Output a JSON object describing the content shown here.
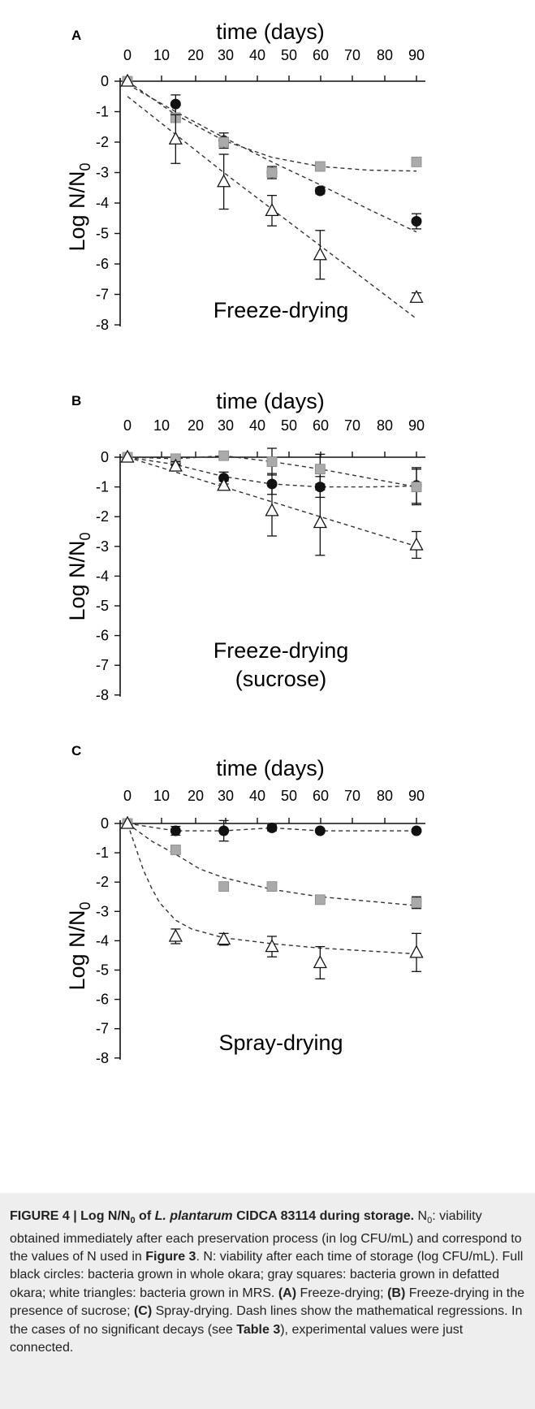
{
  "panels": [
    {
      "letter": "A",
      "label_lines": [
        "Freeze-drying"
      ],
      "xlabel": "time (days)",
      "xticks": [
        0,
        10,
        20,
        30,
        40,
        50,
        60,
        70,
        80,
        90
      ],
      "yticks": [
        0,
        -1,
        -2,
        -3,
        -4,
        -5,
        -6,
        -7,
        -8
      ],
      "ylabel": "Log N/N",
      "ylabel_sub": "0"
    },
    {
      "letter": "B",
      "label_lines": [
        "Freeze-drying",
        "(sucrose)"
      ],
      "xlabel": "time (days)",
      "xticks": [
        0,
        10,
        20,
        30,
        40,
        50,
        60,
        70,
        80,
        90
      ],
      "yticks": [
        0,
        -1,
        -2,
        -3,
        -4,
        -5,
        -6,
        -7,
        -8
      ],
      "ylabel": "Log N/N",
      "ylabel_sub": "0"
    },
    {
      "letter": "C",
      "label_lines": [
        "Spray-drying"
      ],
      "xlabel": "time (days)",
      "xticks": [
        0,
        10,
        20,
        30,
        40,
        50,
        60,
        70,
        80,
        90
      ],
      "yticks": [
        0,
        -1,
        -2,
        -3,
        -4,
        -5,
        -6,
        -7,
        -8
      ],
      "ylabel": "Log N/N",
      "ylabel_sub": "0"
    }
  ],
  "chart_data": [
    {
      "type": "scatter",
      "panel": "A",
      "xlabel": "time (days)",
      "ylabel": "Log N/N0",
      "xlim": [
        0,
        90
      ],
      "ylim": [
        -8,
        0
      ],
      "x": [
        0,
        15,
        30,
        45,
        60,
        90
      ],
      "series": [
        {
          "marker": "black-circle",
          "color": "#111111",
          "values": [
            0,
            -0.75,
            -1.95,
            -3.0,
            -3.6,
            -4.6
          ],
          "errors": [
            0.1,
            0.3,
            0.25,
            0.2,
            0.1,
            0.25
          ],
          "fit": [
            [
              0,
              -0.1
            ],
            [
              15,
              -1.0
            ],
            [
              30,
              -1.85
            ],
            [
              45,
              -2.65
            ],
            [
              60,
              -3.4
            ],
            [
              75,
              -4.2
            ],
            [
              90,
              -4.95
            ]
          ]
        },
        {
          "marker": "gray-square",
          "color": "#aaaaaa",
          "values": [
            0,
            -1.2,
            -2.0,
            -3.0,
            -2.8,
            -2.65
          ],
          "errors": [
            0.05,
            0.1,
            0.1,
            0.05,
            0.05,
            0.05
          ],
          "fit": [
            [
              0,
              0
            ],
            [
              15,
              -1.1
            ],
            [
              30,
              -1.95
            ],
            [
              45,
              -2.5
            ],
            [
              60,
              -2.8
            ],
            [
              75,
              -2.92
            ],
            [
              90,
              -2.95
            ]
          ]
        },
        {
          "marker": "white-triangle",
          "color": "#111111",
          "values": [
            0,
            -1.9,
            -3.3,
            -4.25,
            -5.7,
            -7.1
          ],
          "errors": [
            0.05,
            0.8,
            0.9,
            0.5,
            0.8,
            0.15
          ],
          "fit": [
            [
              0,
              -0.5
            ],
            [
              30,
              -3.0
            ],
            [
              60,
              -5.4
            ],
            [
              90,
              -7.8
            ]
          ]
        }
      ]
    },
    {
      "type": "scatter",
      "panel": "B",
      "xlabel": "time (days)",
      "ylabel": "Log N/N0",
      "xlim": [
        0,
        90
      ],
      "ylim": [
        -8,
        0
      ],
      "x": [
        0,
        15,
        30,
        45,
        60,
        90
      ],
      "series": [
        {
          "marker": "black-circle",
          "color": "#111111",
          "values": [
            0,
            -0.2,
            -0.7,
            -0.9,
            -1.0,
            -0.95
          ],
          "errors": [
            0.05,
            0.15,
            0.2,
            0.35,
            0.35,
            0.6
          ],
          "fit": [
            [
              0,
              0
            ],
            [
              15,
              -0.25
            ],
            [
              30,
              -0.65
            ],
            [
              45,
              -0.9
            ],
            [
              60,
              -1.0
            ],
            [
              75,
              -1.0
            ],
            [
              90,
              -0.97
            ]
          ]
        },
        {
          "marker": "gray-square",
          "color": "#aaaaaa",
          "values": [
            0,
            -0.05,
            0.05,
            -0.15,
            -0.4,
            -1.0
          ],
          "errors": [
            0.05,
            0.1,
            0.15,
            0.45,
            0.5,
            0.6
          ],
          "fit": [
            [
              0,
              0
            ],
            [
              15,
              -0.05
            ],
            [
              30,
              0.05
            ],
            [
              45,
              -0.15
            ],
            [
              60,
              -0.4
            ],
            [
              90,
              -1.0
            ]
          ]
        },
        {
          "marker": "white-triangle",
          "color": "#111111",
          "values": [
            0,
            -0.3,
            -0.95,
            -1.8,
            -2.2,
            -2.95
          ],
          "errors": [
            0.05,
            0.15,
            0.15,
            0.85,
            1.1,
            0.45
          ],
          "fit": [
            [
              0,
              0
            ],
            [
              15,
              -0.5
            ],
            [
              30,
              -1.0
            ],
            [
              45,
              -1.5
            ],
            [
              60,
              -2.0
            ],
            [
              75,
              -2.5
            ],
            [
              90,
              -3.0
            ]
          ]
        }
      ]
    },
    {
      "type": "scatter",
      "panel": "C",
      "xlabel": "time (days)",
      "ylabel": "Log N/N0",
      "xlim": [
        0,
        90
      ],
      "ylim": [
        -8,
        0
      ],
      "x": [
        0,
        15,
        30,
        45,
        60,
        90
      ],
      "series": [
        {
          "marker": "black-circle",
          "color": "#111111",
          "values": [
            0,
            -0.25,
            -0.25,
            -0.15,
            -0.25,
            -0.25
          ],
          "errors": [
            0.05,
            0.15,
            0.35,
            0.1,
            0.05,
            0.05
          ],
          "fit": [
            [
              0,
              0
            ],
            [
              15,
              -0.25
            ],
            [
              30,
              -0.25
            ],
            [
              45,
              -0.15
            ],
            [
              60,
              -0.25
            ],
            [
              90,
              -0.25
            ]
          ]
        },
        {
          "marker": "gray-square",
          "color": "#aaaaaa",
          "values": [
            0,
            -0.9,
            -2.15,
            -2.15,
            -2.6,
            -2.7
          ],
          "errors": [
            0.05,
            0.1,
            0.05,
            0.1,
            0.1,
            0.2
          ],
          "fit": [
            [
              0,
              0
            ],
            [
              7.5,
              -0.6
            ],
            [
              15,
              -1.05
            ],
            [
              22.5,
              -1.55
            ],
            [
              30,
              -1.85
            ],
            [
              45,
              -2.25
            ],
            [
              60,
              -2.5
            ],
            [
              75,
              -2.65
            ],
            [
              90,
              -2.8
            ]
          ]
        },
        {
          "marker": "white-triangle",
          "color": "#111111",
          "values": [
            0,
            -3.85,
            -3.95,
            -4.2,
            -4.75,
            -4.4
          ],
          "errors": [
            0.05,
            0.25,
            0.2,
            0.35,
            0.55,
            0.65
          ],
          "fit": [
            [
              0,
              0
            ],
            [
              2.5,
              -0.8
            ],
            [
              5,
              -1.6
            ],
            [
              7.5,
              -2.2
            ],
            [
              10,
              -2.7
            ],
            [
              15,
              -3.3
            ],
            [
              20,
              -3.6
            ],
            [
              30,
              -3.9
            ],
            [
              45,
              -4.1
            ],
            [
              60,
              -4.25
            ],
            [
              75,
              -4.35
            ],
            [
              90,
              -4.45
            ]
          ]
        }
      ]
    }
  ],
  "caption": {
    "title_prefix": "FIGURE 4 | Log N/N",
    "title_sub": "0",
    "title_of": " of ",
    "title_species": "L. plantarum",
    "title_rest": " CIDCA 83114 during storage.",
    "n0_label": "N",
    "n0_sub": "0",
    "text_1": ": viability obtained immediately after each preservation process (in log CFU/mL) and correspond to the values of N used in ",
    "figure_ref": "Figure 3",
    "text_2": ". N: viability after each time of storage (log CFU/mL). Full black circles: bacteria grown in whole okara; gray squares: bacteria grown in defatted okara; white triangles: bacteria grown in MRS. ",
    "ref_a": "(A)",
    "text_a": " Freeze-drying; ",
    "ref_b": "(B)",
    "text_b": " Freeze-drying in the presence of sucrose; ",
    "ref_c": "(C)",
    "text_c": " Spray-drying. Dash lines show the mathematical regressions. In the cases of no significant decays (see ",
    "table_ref": "Table 3",
    "text_end": "), experimental values were just connected."
  }
}
